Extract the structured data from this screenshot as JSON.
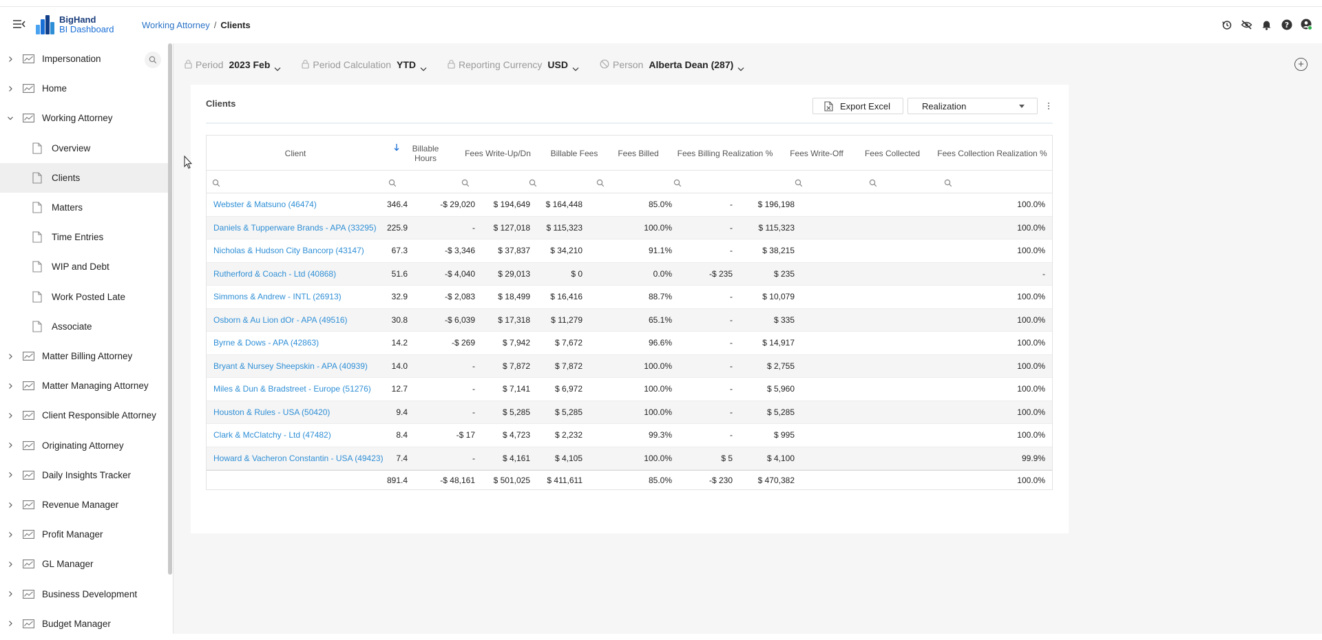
{
  "app": {
    "logo_line1": "BigHand",
    "logo_line2": "BI Dashboard",
    "brand_colors": [
      "#1a6fd6",
      "#2f8fd6",
      "#123f8a"
    ]
  },
  "breadcrumb": {
    "parent": "Working Attorney",
    "separator": "/",
    "current": "Clients"
  },
  "top_icons": [
    "history-icon",
    "visibility-off-icon",
    "bell-icon",
    "help-icon",
    "user-icon"
  ],
  "sidebar": {
    "items": [
      {
        "label": "Impersonation",
        "type": "dashboard",
        "expanded": false
      },
      {
        "label": "Home",
        "type": "dashboard",
        "expanded": false
      },
      {
        "label": "Working Attorney",
        "type": "dashboard",
        "expanded": true
      },
      {
        "label": "Overview",
        "type": "page"
      },
      {
        "label": "Clients",
        "type": "page",
        "active": true
      },
      {
        "label": "Matters",
        "type": "page"
      },
      {
        "label": "Time Entries",
        "type": "page"
      },
      {
        "label": "WIP and Debt",
        "type": "page"
      },
      {
        "label": "Work Posted Late",
        "type": "page"
      },
      {
        "label": "Associate",
        "type": "page"
      },
      {
        "label": "Matter Billing Attorney",
        "type": "dashboard",
        "expanded": false
      },
      {
        "label": "Matter Managing Attorney",
        "type": "dashboard",
        "expanded": false
      },
      {
        "label": "Client Responsible Attorney",
        "type": "dashboard",
        "expanded": false
      },
      {
        "label": "Originating Attorney",
        "type": "dashboard",
        "expanded": false
      },
      {
        "label": "Daily Insights Tracker",
        "type": "dashboard",
        "expanded": false
      },
      {
        "label": "Revenue Manager",
        "type": "dashboard",
        "expanded": false
      },
      {
        "label": "Profit Manager",
        "type": "dashboard",
        "expanded": false
      },
      {
        "label": "GL Manager",
        "type": "dashboard",
        "expanded": false
      },
      {
        "label": "Business Development",
        "type": "dashboard",
        "expanded": false
      },
      {
        "label": "Budget Manager",
        "type": "dashboard",
        "expanded": false
      }
    ]
  },
  "filters": [
    {
      "label": "Period",
      "value": "2023 Feb",
      "icon": "lock-icon"
    },
    {
      "label": "Period Calculation",
      "value": "YTD",
      "icon": "lock-icon"
    },
    {
      "label": "Reporting Currency",
      "value": "USD",
      "icon": "lock-icon"
    },
    {
      "label": "Person",
      "value": "Alberta Dean (287)",
      "icon": "block-icon"
    }
  ],
  "card": {
    "title": "Clients",
    "export_label": "Export Excel",
    "measure_value": "Realization"
  },
  "table": {
    "columns": [
      {
        "label": "Client"
      },
      {
        "label": "Billable Hours"
      },
      {
        "label": "Fees Write-Up/Dn"
      },
      {
        "label": "Billable Fees"
      },
      {
        "label": "Fees Billed"
      },
      {
        "label": "Fees Billing Realization %"
      },
      {
        "label": "Fees Write-Off"
      },
      {
        "label": "Fees Collected"
      },
      {
        "label": "Fees Collection Realization %"
      }
    ],
    "sort": {
      "column": "Billable Hours",
      "direction": "descending"
    },
    "rows": [
      [
        "Webster & Matsuno (46474)",
        "346.4",
        "-$ 29,020",
        "$ 194,649",
        "$ 164,448",
        "85.0%",
        "-",
        "$ 196,198",
        "100.0%"
      ],
      [
        "Daniels & Tupperware Brands - APA (33295)",
        "225.9",
        "-",
        "$ 127,018",
        "$ 115,323",
        "100.0%",
        "-",
        "$ 115,323",
        "100.0%"
      ],
      [
        "Nicholas & Hudson City Bancorp (43147)",
        "67.3",
        "-$ 3,346",
        "$ 37,837",
        "$ 34,210",
        "91.1%",
        "-",
        "$ 38,215",
        "100.0%"
      ],
      [
        "Rutherford & Coach - Ltd (40868)",
        "51.6",
        "-$ 4,040",
        "$ 29,013",
        "$ 0",
        "0.0%",
        "-$ 235",
        "$ 235",
        "-"
      ],
      [
        "Simmons & Andrew - INTL (26913)",
        "32.9",
        "-$ 2,083",
        "$ 18,499",
        "$ 16,416",
        "88.7%",
        "-",
        "$ 10,079",
        "100.0%"
      ],
      [
        "Osborn & Au Lion dOr - APA (49516)",
        "30.8",
        "-$ 6,039",
        "$ 17,318",
        "$ 11,279",
        "65.1%",
        "-",
        "$ 335",
        "100.0%"
      ],
      [
        "Byrne & Dows - APA (42863)",
        "14.2",
        "-$ 269",
        "$ 7,942",
        "$ 7,672",
        "96.6%",
        "-",
        "$ 14,917",
        "100.0%"
      ],
      [
        "Bryant & Nursey Sheepskin - APA (40939)",
        "14.0",
        "-",
        "$ 7,872",
        "$ 7,872",
        "100.0%",
        "-",
        "$ 2,755",
        "100.0%"
      ],
      [
        "Miles & Dun & Bradstreet - Europe (51276)",
        "12.7",
        "-",
        "$ 7,141",
        "$ 6,972",
        "100.0%",
        "-",
        "$ 5,960",
        "100.0%"
      ],
      [
        "Houston & Rules - USA (50420)",
        "9.4",
        "-",
        "$ 5,285",
        "$ 5,285",
        "100.0%",
        "-",
        "$ 5,285",
        "100.0%"
      ],
      [
        "Clark & McClatchy - Ltd (47482)",
        "8.4",
        "-$ 17",
        "$ 4,723",
        "$ 2,232",
        "99.3%",
        "-",
        "$ 995",
        "100.0%"
      ],
      [
        "Howard & Vacheron Constantin - USA (49423)",
        "7.4",
        "-",
        "$ 4,161",
        "$ 4,105",
        "100.0%",
        "$ 5",
        "$ 4,100",
        "99.9%"
      ]
    ],
    "totals": [
      "",
      "891.4",
      "-$ 48,161",
      "$ 501,025",
      "$ 411,611",
      "85.0%",
      "-$ 230",
      "$ 470,382",
      "100.0%"
    ]
  }
}
